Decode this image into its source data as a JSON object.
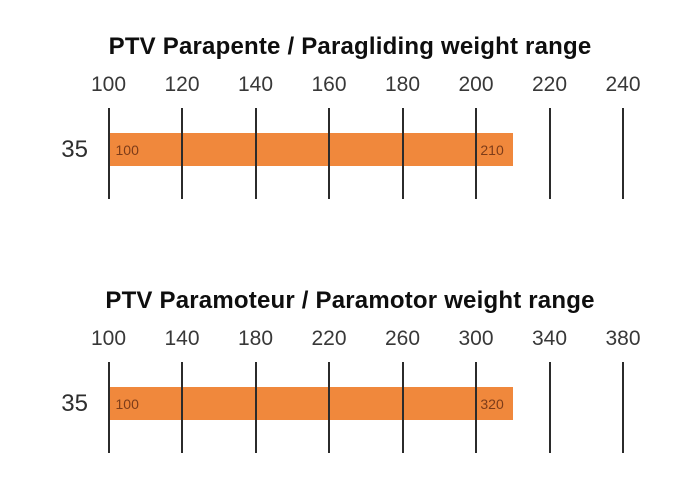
{
  "colors": {
    "background": "#ffffff",
    "bar": "#f0883c",
    "bar_value_label": "#7d3c19",
    "gridline": "#2b2b2b",
    "tick_label": "#383838",
    "title": "#0e0e0e"
  },
  "chart_data": [
    {
      "type": "bar",
      "orientation": "horizontal-range",
      "title": "PTV Parapente / Paragliding weight range",
      "row_label": "35",
      "axis": {
        "min": 100,
        "max": 240,
        "step": 20,
        "ticks": [
          100,
          120,
          140,
          160,
          180,
          200,
          220,
          240
        ],
        "position": "top",
        "grid": true
      },
      "bar": {
        "category": "35",
        "from": 100,
        "to": 210,
        "from_label": "100",
        "to_label": "210",
        "color": "#f0883c"
      },
      "legend": null
    },
    {
      "type": "bar",
      "orientation": "horizontal-range",
      "title": "PTV Paramoteur / Paramotor weight range",
      "row_label": "35",
      "axis": {
        "min": 100,
        "max": 380,
        "step": 40,
        "ticks": [
          100,
          140,
          180,
          220,
          260,
          300,
          340,
          380
        ],
        "position": "top",
        "grid": true
      },
      "bar": {
        "category": "35",
        "from": 100,
        "to": 320,
        "from_label": "100",
        "to_label": "320",
        "color": "#f0883c"
      },
      "legend": null
    }
  ]
}
